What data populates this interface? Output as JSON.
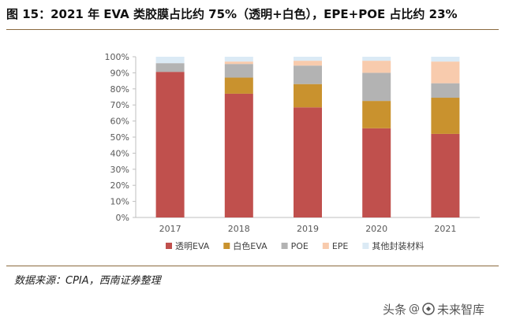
{
  "header": {
    "title": "图 15：2021 年 EVA 类胶膜占比约 75%（透明+白色），EPE+POE 占比约 23%"
  },
  "footer": {
    "source": "数据来源：CPIA，西南证券整理"
  },
  "watermark": {
    "platform": "头条",
    "at": "@",
    "account": "未来智库"
  },
  "colors": {
    "rule": "#8a6a3e",
    "axis": "#bfbfbf",
    "tick_text": "#595959"
  },
  "chart_data": {
    "type": "bar",
    "stacked": true,
    "percent": true,
    "categories": [
      "2017",
      "2018",
      "2019",
      "2020",
      "2021"
    ],
    "ylim": [
      0,
      100
    ],
    "yticks": [
      0,
      10,
      20,
      30,
      40,
      50,
      60,
      70,
      80,
      90,
      100
    ],
    "ytick_labels": [
      "0%",
      "10%",
      "20%",
      "30%",
      "40%",
      "50%",
      "60%",
      "70%",
      "80%",
      "90%",
      "100%"
    ],
    "legend_position": "bottom",
    "grid": false,
    "series": [
      {
        "name": "透明EVA",
        "color": "#c0504d",
        "values": [
          90.6,
          77.0,
          68.5,
          55.5,
          52.0
        ]
      },
      {
        "name": "白色EVA",
        "color": "#c9922e",
        "values": [
          0,
          10.0,
          14.5,
          17.0,
          22.5
        ]
      },
      {
        "name": "POE",
        "color": "#b3b3b3",
        "values": [
          5.4,
          8.5,
          11.5,
          17.5,
          9.0
        ]
      },
      {
        "name": "EPE",
        "color": "#f8cbad",
        "values": [
          0,
          1.5,
          3.0,
          7.5,
          13.5
        ]
      },
      {
        "name": "其他封装材料",
        "color": "#dbeaf5",
        "values": [
          4.0,
          3.0,
          2.5,
          2.5,
          3.0
        ]
      }
    ]
  }
}
